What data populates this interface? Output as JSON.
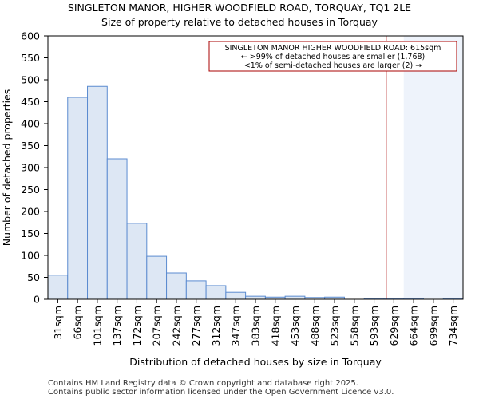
{
  "chart_data": {
    "type": "bar",
    "title": "SINGLETON MANOR, HIGHER WOODFIELD ROAD, TORQUAY, TQ1 2LE",
    "subtitle": "Size of property relative to detached houses in Torquay",
    "xlabel": "Distribution of detached houses by size in Torquay",
    "ylabel": "Number of detached properties",
    "ylim": [
      0,
      600
    ],
    "yticks": [
      0,
      50,
      100,
      150,
      200,
      250,
      300,
      350,
      400,
      450,
      500,
      550,
      600
    ],
    "categories": [
      "31sqm",
      "66sqm",
      "101sqm",
      "137sqm",
      "172sqm",
      "207sqm",
      "242sqm",
      "277sqm",
      "312sqm",
      "347sqm",
      "383sqm",
      "418sqm",
      "453sqm",
      "488sqm",
      "523sqm",
      "558sqm",
      "593sqm",
      "629sqm",
      "664sqm",
      "699sqm",
      "734sqm"
    ],
    "values": [
      55,
      460,
      485,
      320,
      173,
      98,
      60,
      42,
      31,
      16,
      7,
      5,
      7,
      4,
      5,
      0,
      2,
      2,
      2,
      0,
      2
    ],
    "marker": {
      "value_sqm": 615,
      "color": "#aa0000"
    },
    "bar_color": "#dde7f4",
    "bar_edge_color": "#5b8bd0",
    "highlight_color": "#eef3fb",
    "grid": false,
    "annotation": {
      "line1": "SINGLETON MANOR HIGHER WOODFIELD ROAD: 615sqm",
      "line2": "← >99% of detached houses are smaller (1,768)",
      "line3": "<1% of semi-detached houses are larger (2) →",
      "placement": "top-right"
    }
  },
  "footer": {
    "line1": "Contains HM Land Registry data © Crown copyright and database right 2025.",
    "line2": "Contains public sector information licensed under the Open Government Licence v3.0."
  }
}
